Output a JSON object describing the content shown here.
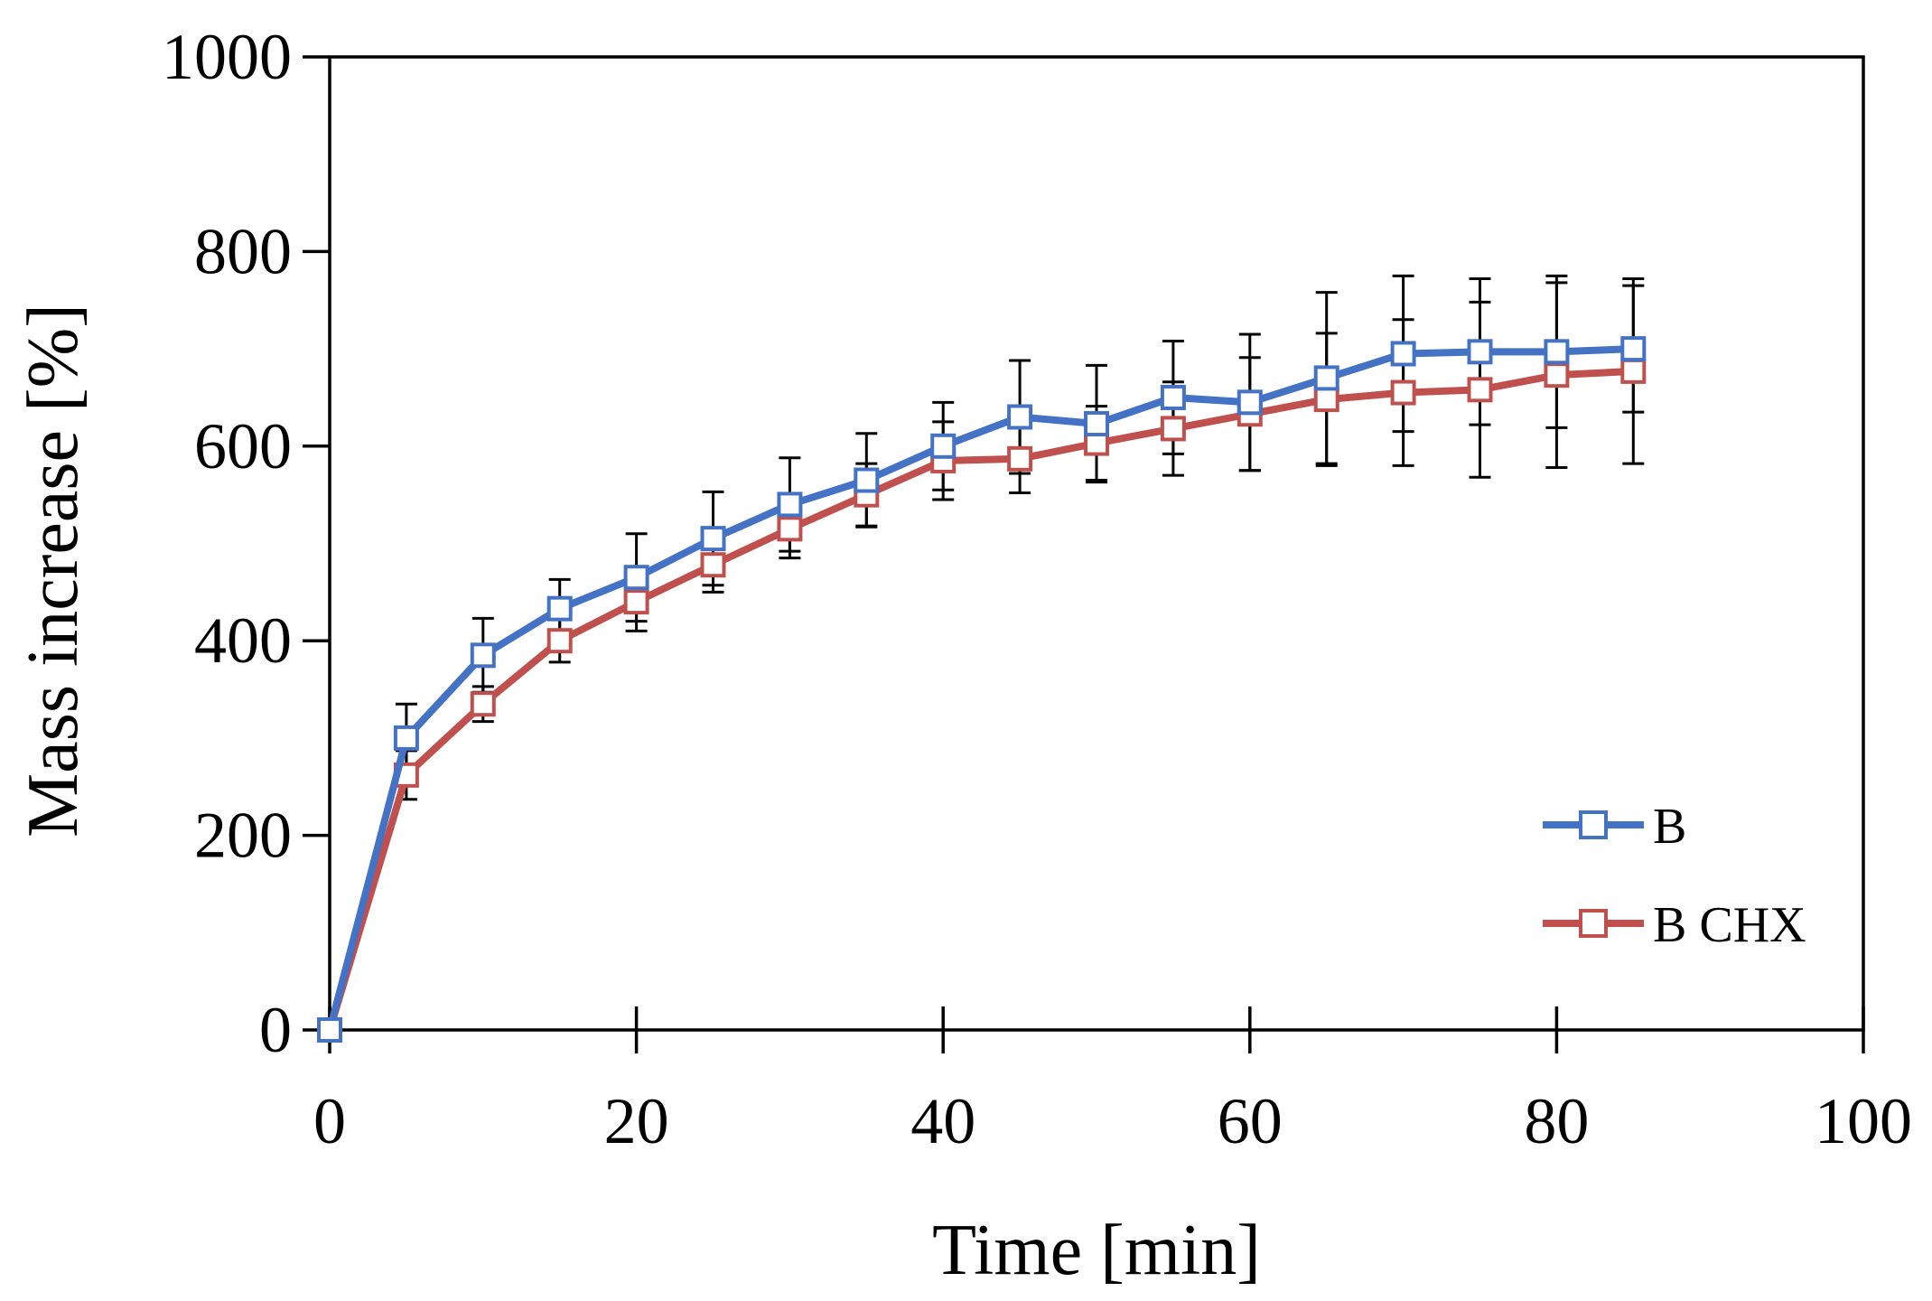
{
  "chart_data": {
    "type": "line",
    "title": "",
    "xlabel": "Time [min]",
    "ylabel": "Mass increase [%]",
    "xlim": [
      0,
      100
    ],
    "ylim": [
      0,
      1000
    ],
    "xticks": [
      0,
      20,
      40,
      60,
      80,
      100
    ],
    "yticks": [
      0,
      200,
      400,
      600,
      800,
      1000
    ],
    "grid": false,
    "legend_position": "bottom-right",
    "x": [
      0,
      5,
      10,
      15,
      20,
      25,
      30,
      35,
      40,
      45,
      50,
      55,
      60,
      65,
      70,
      75,
      80,
      85
    ],
    "series": [
      {
        "name": "B",
        "color": "#4472C4",
        "values": [
          0,
          300,
          385,
          433,
          465,
          505,
          540,
          565,
          600,
          630,
          623,
          650,
          645,
          670,
          695,
          697,
          697,
          700
        ],
        "error": [
          0,
          35,
          38,
          30,
          45,
          48,
          48,
          48,
          45,
          58,
          60,
          58,
          70,
          88,
          80,
          75,
          78,
          65
        ]
      },
      {
        "name": "B CHX",
        "color": "#C0504D",
        "values": [
          0,
          262,
          335,
          400,
          440,
          478,
          515,
          550,
          585,
          587,
          603,
          618,
          633,
          648,
          655,
          658,
          673,
          677
        ],
        "error": [
          0,
          25,
          18,
          22,
          30,
          28,
          30,
          32,
          40,
          35,
          38,
          48,
          58,
          68,
          75,
          90,
          95,
          95
        ]
      }
    ]
  }
}
